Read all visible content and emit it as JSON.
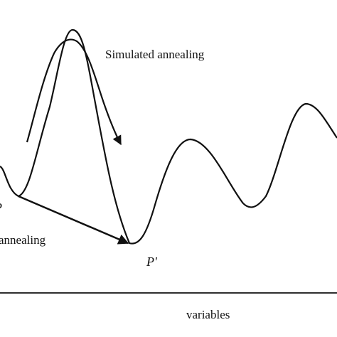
{
  "labels": {
    "simulated_annealing": "Simulated annealing",
    "annealing_fragment": "annealing",
    "point_p": "P",
    "point_p_prime": "P'",
    "x_axis": "variables"
  },
  "colors": {
    "ink": "#111111",
    "background": "#ffffff"
  }
}
